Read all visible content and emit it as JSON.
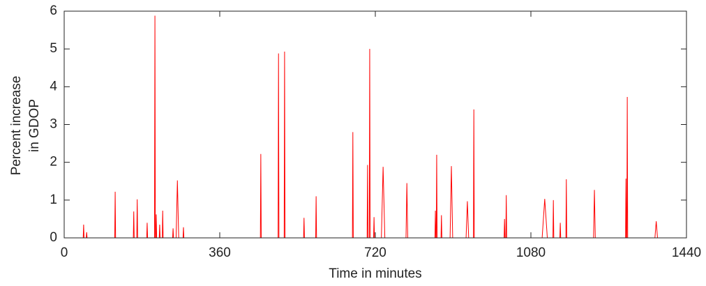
{
  "chart_data": {
    "type": "line",
    "xlabel": "Time in minutes",
    "ylabel": [
      "Percent increase",
      "in GDOP"
    ],
    "x": [
      0,
      44,
      45,
      46,
      51,
      52,
      53,
      117,
      118,
      119,
      160,
      161,
      162,
      168,
      169,
      170,
      191,
      192,
      193,
      209,
      210,
      211,
      212,
      213,
      214,
      220,
      221,
      222,
      227,
      228,
      229,
      251,
      252,
      253,
      259,
      262,
      265,
      275,
      276,
      277,
      454,
      455,
      456,
      495,
      496,
      497,
      509,
      510,
      511,
      554,
      555,
      556,
      582,
      583,
      584,
      667,
      668,
      669,
      701,
      702,
      703,
      706,
      707,
      708,
      716,
      717,
      718,
      734,
      738,
      742,
      791,
      793,
      795,
      858,
      859,
      860,
      861,
      862,
      863,
      872,
      873,
      874,
      893,
      896,
      899,
      930,
      933,
      936,
      947,
      948,
      949,
      1018,
      1019,
      1020,
      1022,
      1023,
      1024,
      1106,
      1112,
      1118,
      1131,
      1132,
      1133,
      1147,
      1148,
      1149,
      1161,
      1162,
      1163,
      1225,
      1227,
      1229,
      1299,
      1300,
      1301,
      1302,
      1303,
      1304,
      1367,
      1370,
      1373,
      1440
    ],
    "series": [
      {
        "color": "#ff0000",
        "values": [
          0,
          0,
          0.35,
          0,
          0,
          0.15,
          0,
          0,
          1.22,
          0,
          0,
          0.7,
          0,
          0,
          1.02,
          0,
          0,
          0.4,
          0,
          0,
          5.88,
          0,
          0,
          0.62,
          0,
          0,
          0.35,
          0,
          0,
          0.72,
          0,
          0,
          0.25,
          0,
          0,
          1.52,
          0,
          0,
          0.28,
          0,
          0,
          2.22,
          0,
          0,
          4.88,
          0,
          0,
          4.93,
          0,
          0,
          0.53,
          0,
          0,
          1.1,
          0,
          0,
          2.8,
          0,
          0,
          1.93,
          0,
          0,
          5.0,
          0,
          0,
          0.55,
          0,
          0,
          1.88,
          0,
          0,
          1.45,
          0,
          0,
          0.72,
          0,
          0,
          2.2,
          0,
          0,
          0.6,
          0,
          0,
          1.9,
          0,
          0,
          0.97,
          0,
          0,
          3.4,
          0,
          0,
          0.5,
          0,
          0,
          1.13,
          0,
          0,
          1.03,
          0,
          0,
          1.0,
          0,
          0,
          0.4,
          0,
          0,
          1.55,
          0,
          0,
          1.27,
          0,
          0,
          1.57,
          0,
          0,
          3.73,
          0,
          0,
          0.44,
          0,
          0
        ]
      }
    ],
    "xlim": [
      0,
      1440
    ],
    "xticks": [
      0,
      360,
      720,
      1080,
      1440
    ],
    "ylim": [
      0,
      6
    ],
    "yticks": [
      0,
      1,
      2,
      3,
      4,
      5,
      6
    ]
  }
}
